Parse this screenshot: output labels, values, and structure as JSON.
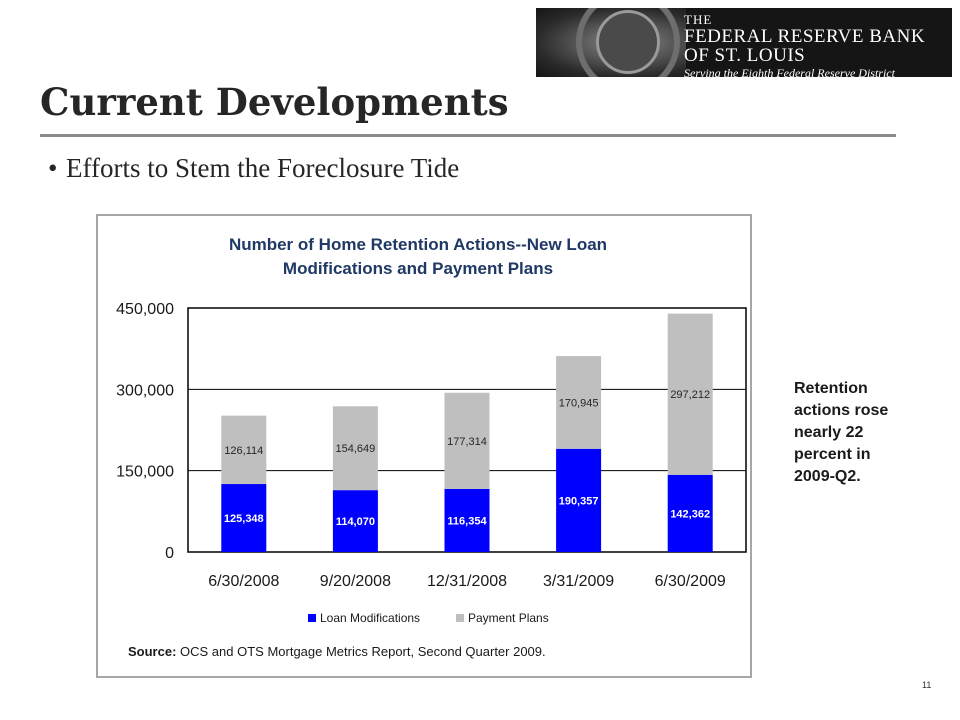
{
  "header": {
    "logo": {
      "line1": "THE",
      "line2": "FEDERAL RESERVE BANK",
      "line3": "OF ST. LOUIS",
      "tagline": "Serving the Eighth Federal Reserve District"
    }
  },
  "slide": {
    "title": "Current Developments",
    "bullet": "Efforts to Stem the Foreclosure Tide",
    "note": "Retention actions rose nearly 22 percent in 2009-Q2.",
    "page_number": "11"
  },
  "chart_data": {
    "type": "bar",
    "stacked": true,
    "title_line1": "Number of Home Retention Actions--New Loan",
    "title_line2": "Modifications and Payment Plans",
    "categories": [
      "6/30/2008",
      "9/20/2008",
      "12/31/2008",
      "3/31/2009",
      "6/30/2009"
    ],
    "series": [
      {
        "name": "Loan Modifications",
        "color": "#0000ff",
        "label_color": "#ffffff",
        "values": [
          125348,
          114070,
          116354,
          190357,
          142362
        ],
        "labels": [
          "125,348",
          "114,070",
          "116,354",
          "190,357",
          "142,362"
        ]
      },
      {
        "name": "Payment Plans",
        "color": "#bfbfbf",
        "label_color": "#262626",
        "values": [
          126114,
          154649,
          177314,
          170945,
          297212
        ],
        "labels": [
          "126,114",
          "154,649",
          "177,314",
          "170,945",
          "297,212"
        ]
      }
    ],
    "ylim": [
      0,
      450000
    ],
    "yticks": [
      0,
      150000,
      300000,
      450000
    ],
    "ytick_labels": [
      "0",
      "150,000",
      "300,000",
      "450,000"
    ],
    "grid": true,
    "legend_position": "bottom",
    "source_label": "Source:",
    "source_text": " OCS and OTS Mortgage Metrics Report, Second Quarter 2009."
  }
}
